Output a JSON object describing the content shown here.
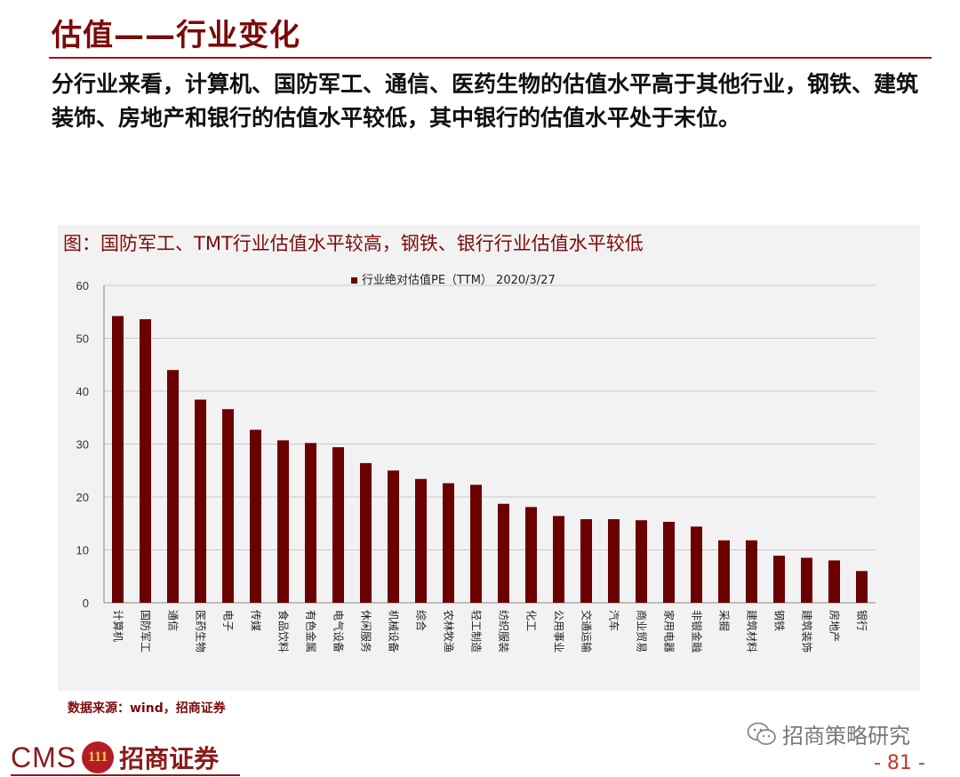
{
  "page": {
    "title": "估值——行业变化",
    "summary": "分行业来看，计算机、国防军工、通信、医药生物的估值水平高于其他行业，钢铁、建筑装饰、房地产和银行的估值水平较低，其中银行的估值水平处于末位。",
    "source": "数据来源：wind，招商证券",
    "page_number": "- 81 -",
    "watermark": "招商策略研究",
    "logo": {
      "latin": "CMS",
      "emblem_text": "111",
      "chinese": "招商证券"
    }
  },
  "colors": {
    "bar": "#6b0000",
    "title": "#7b0a0a",
    "rule": "#a0141e",
    "panel": "#f2f2f2"
  },
  "icons": {
    "wechat": "wechat-icon"
  },
  "chart_data": {
    "type": "bar",
    "title": "图：国防军工、TMT行业估值水平较高，钢铁、银行行业估值水平较低",
    "legend": "行业绝对估值PE（TTM） 2020/3/27",
    "legend_position": "top-center",
    "grid": true,
    "ylim": [
      0,
      60
    ],
    "yticks": [
      0,
      10,
      20,
      30,
      40,
      50,
      60
    ],
    "categories": [
      "计算机",
      "国防军工",
      "通信",
      "医药生物",
      "电子",
      "传媒",
      "食品饮料",
      "有色金属",
      "电气设备",
      "休闲服务",
      "机械设备",
      "综合",
      "农林牧渔",
      "轻工制造",
      "纺织服装",
      "化工",
      "公用事业",
      "交通运输",
      "汽车",
      "商业贸易",
      "家用电器",
      "非银金融",
      "采掘",
      "建筑材料",
      "钢铁",
      "建筑装饰",
      "房地产",
      "银行"
    ],
    "series": [
      {
        "name": "行业绝对估值PE（TTM） 2020/3/27",
        "values": [
          54.2,
          53.6,
          44.0,
          38.4,
          36.6,
          32.7,
          30.7,
          30.2,
          29.4,
          26.4,
          25.0,
          23.4,
          22.6,
          22.3,
          18.7,
          18.1,
          16.4,
          15.8,
          15.8,
          15.6,
          15.3,
          14.4,
          11.8,
          11.8,
          8.9,
          8.5,
          8.0,
          6.0
        ]
      }
    ]
  }
}
